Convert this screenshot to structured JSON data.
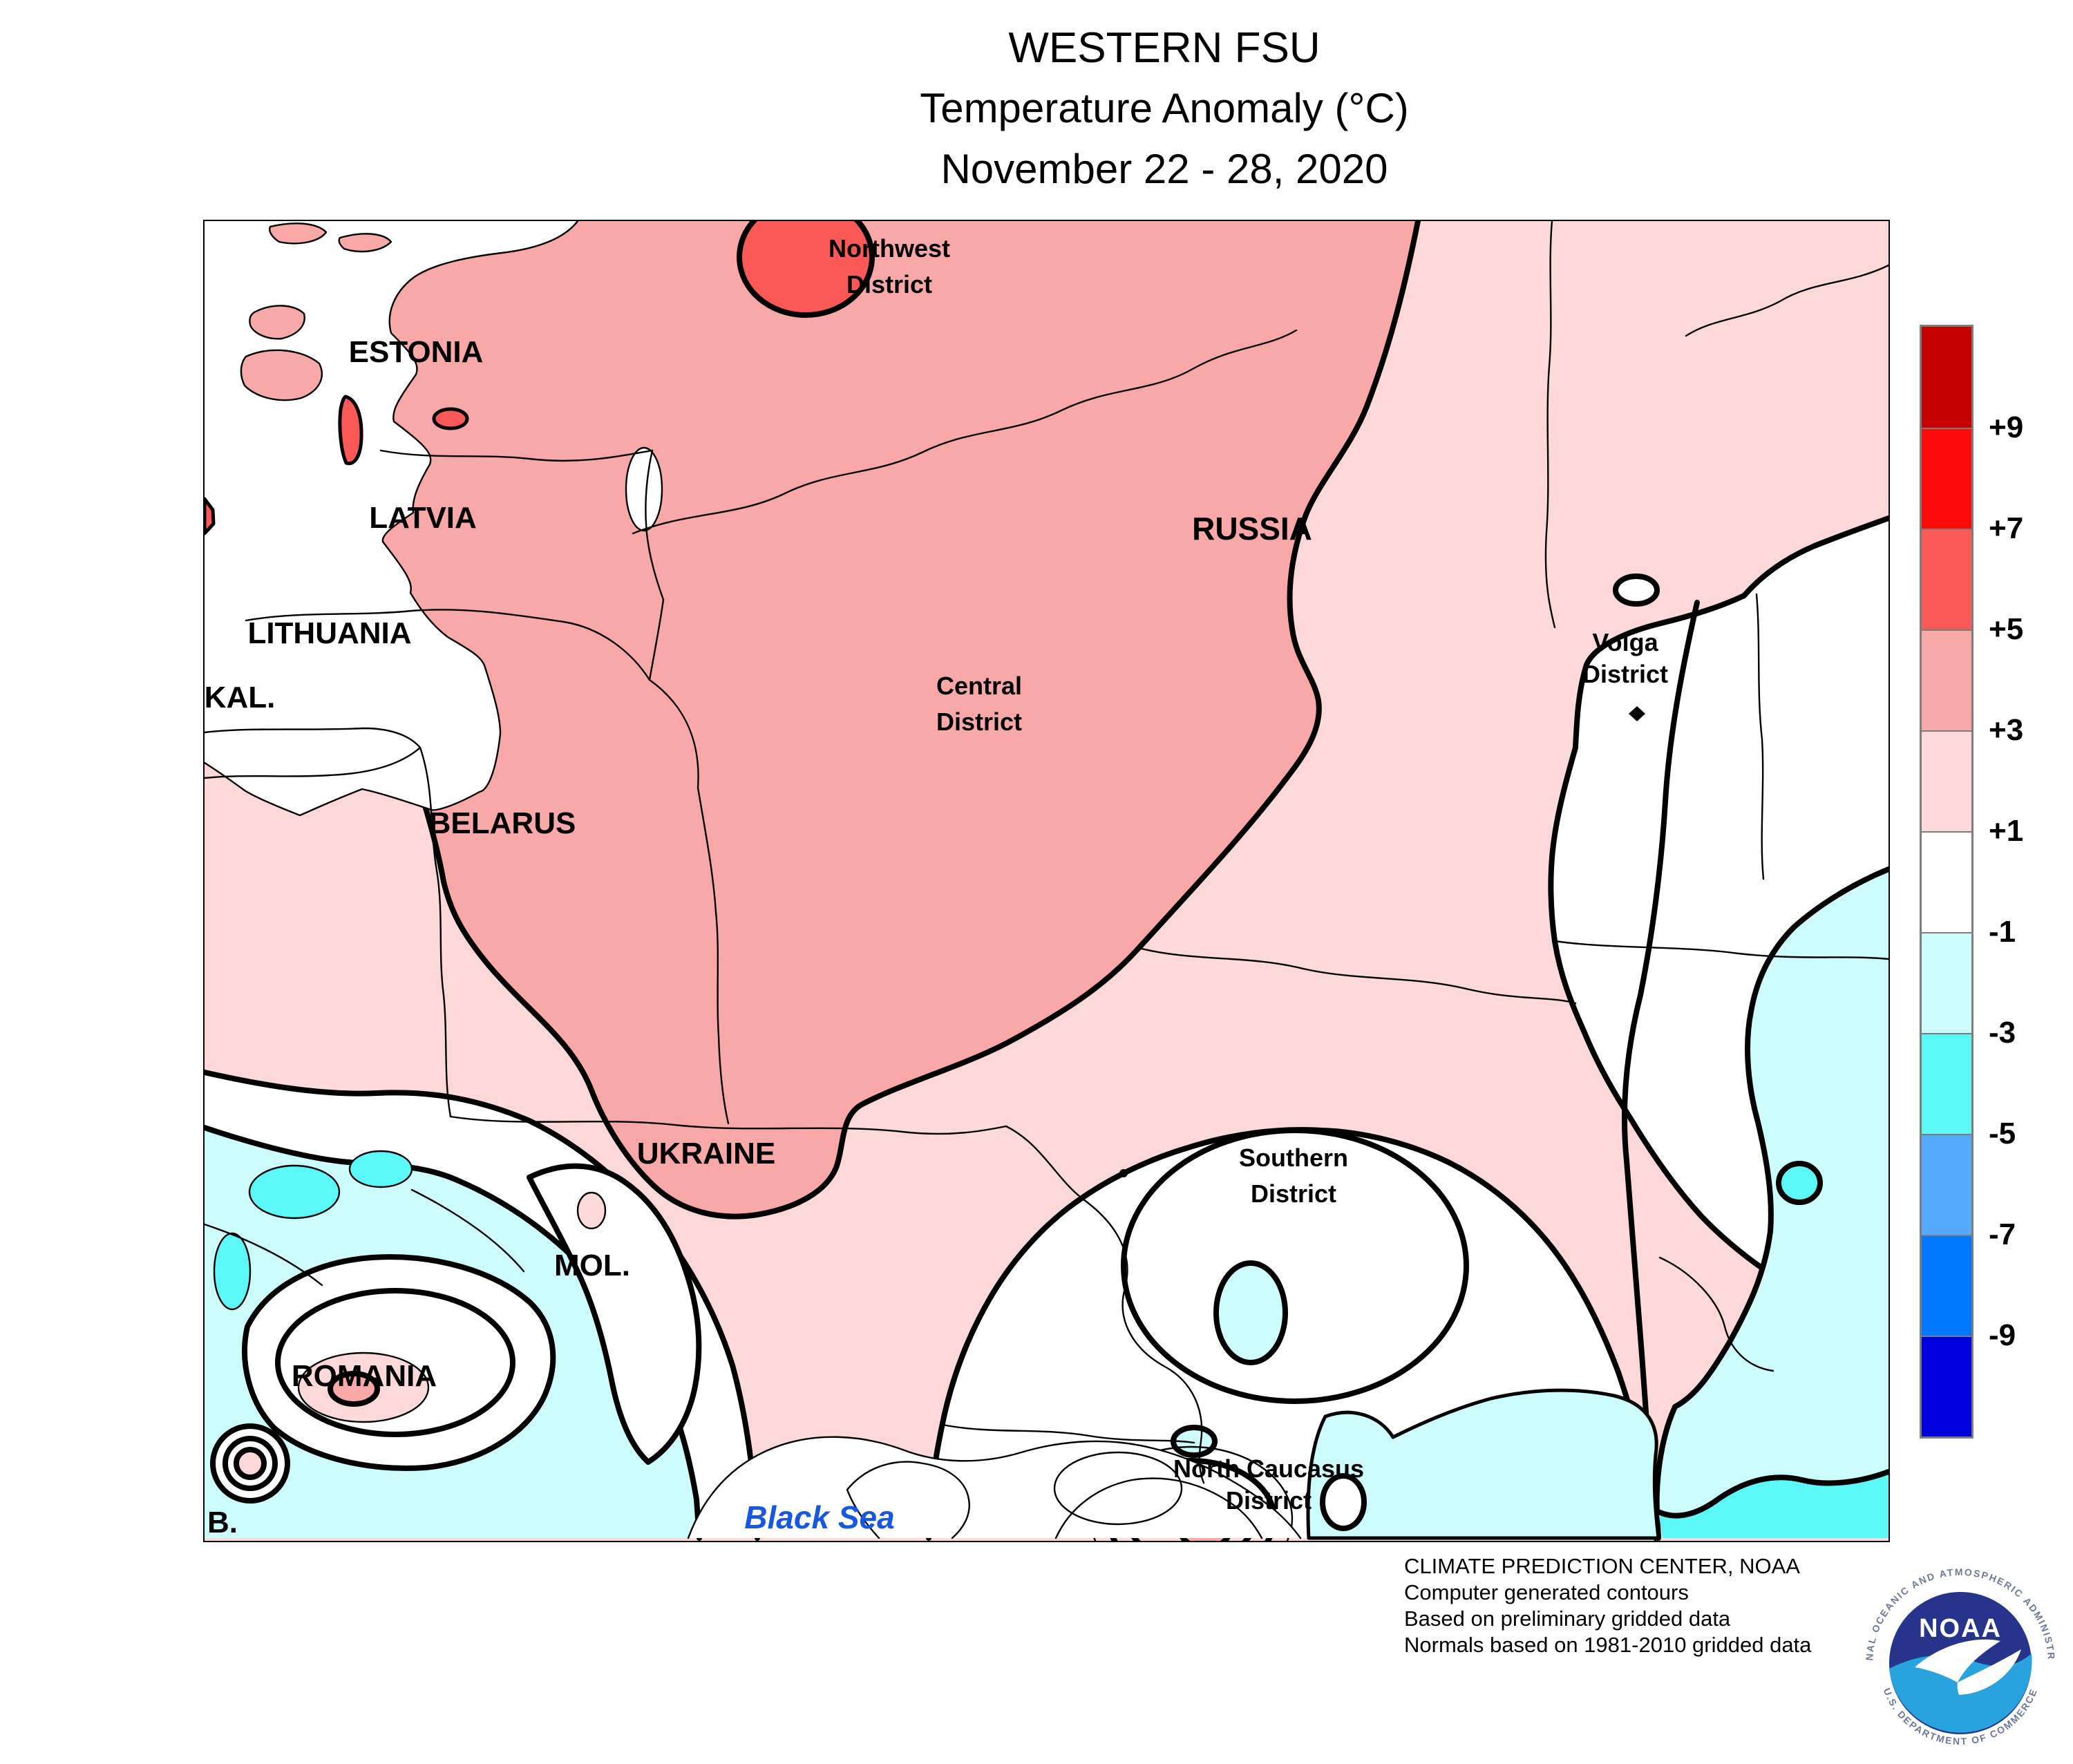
{
  "title": {
    "line1": "WESTERN FSU",
    "line2": "Temperature Anomaly (°C)",
    "line3": "November 22 - 28, 2020"
  },
  "map_labels": {
    "estonia": "ESTONIA",
    "latvia": "LATVIA",
    "lithuania": "LITHUANIA",
    "kaliningrad": "KAL.",
    "belarus": "BELARUS",
    "russia": "RUSSIA",
    "ukraine": "UKRAINE",
    "moldova": "MOL.",
    "romania": "ROMANIA",
    "bulgaria": "B.",
    "black_sea": "Black Sea",
    "northwest_district": {
      "line1": "Northwest",
      "line2": "District"
    },
    "central_district": {
      "line1": "Central",
      "line2": "District"
    },
    "volga_district": {
      "line1": "Volga",
      "line2": "District"
    },
    "southern_district": {
      "line1": "Southern",
      "line2": "District"
    },
    "north_caucasus_district": {
      "line1": "North Caucasus",
      "line2": "District"
    }
  },
  "legend": {
    "swatches": [
      {
        "name": "above-plus9",
        "color": "#c40000"
      },
      {
        "name": "plus7-to-plus9",
        "color": "#fb0a0a"
      },
      {
        "name": "plus5-to-plus7",
        "color": "#fb5858"
      },
      {
        "name": "plus3-to-plus5",
        "color": "#f9a8a8"
      },
      {
        "name": "plus1-to-plus3",
        "color": "#fdd8d8"
      },
      {
        "name": "minus1-to-plus1",
        "color": "#ffffff"
      },
      {
        "name": "minus3-to-minus1",
        "color": "#ccfcfc"
      },
      {
        "name": "minus5-to-minus3",
        "color": "#5cf8f8"
      },
      {
        "name": "minus7-to-minus5",
        "color": "#55aaff"
      },
      {
        "name": "minus9-to-minus7",
        "color": "#0078ff"
      },
      {
        "name": "below-minus9",
        "color": "#0000dc"
      }
    ],
    "boundary_labels": [
      "+9",
      "+7",
      "+5",
      "+3",
      "+1",
      "-1",
      "-3",
      "-5",
      "-7",
      "-9"
    ]
  },
  "credits": {
    "line1": "CLIMATE PREDICTION CENTER, NOAA",
    "line2": "Computer generated contours",
    "line3": "Based on preliminary gridded data",
    "line4": "Normals based on 1981-2010 gridded data"
  },
  "noaa_logo": {
    "acronym": "NOAA",
    "ring_top": "NATIONAL OCEANIC AND ATMOSPHERIC ADMINISTRATION",
    "ring_bottom": "U.S. DEPARTMENT OF COMMERCE"
  },
  "colors": {
    "anomaly_above_p9": "#c40000",
    "anomaly_p7_p9": "#fb0a0a",
    "anomaly_p5_p7": "#fb5858",
    "anomaly_p3_p5": "#f9a8a8",
    "anomaly_p1_p3": "#fdd8d8",
    "anomaly_m1_p1": "#ffffff",
    "anomaly_m3_m1": "#ccfcfc",
    "anomaly_m5_m3": "#5cf8f8",
    "anomaly_m7_m5": "#55aaff",
    "anomaly_m9_m7": "#0078ff",
    "anomaly_below_m9": "#0000dc",
    "contour": "#000000",
    "sea_label": "#1757e2",
    "logo_dark_blue": "#27348b",
    "logo_light_blue": "#29a3dd",
    "logo_ring_text": "#6b7a99"
  }
}
